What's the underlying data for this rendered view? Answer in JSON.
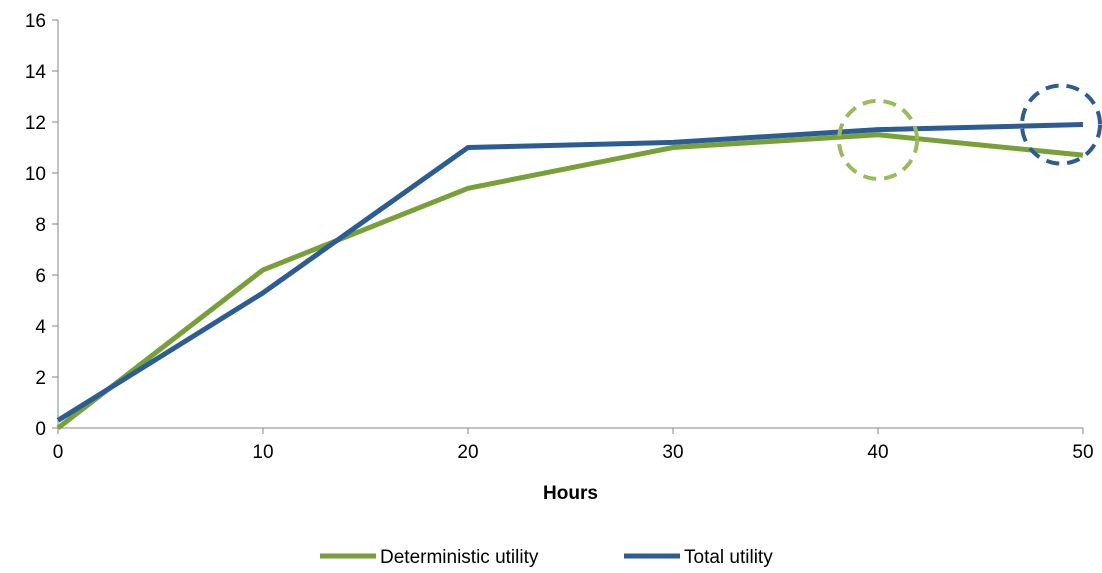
{
  "chart_data": {
    "type": "line",
    "title": "",
    "xlabel": "Hours",
    "ylabel": "",
    "x": [
      0,
      10,
      20,
      30,
      40,
      50
    ],
    "xticks": [
      "0",
      "10",
      "20",
      "30",
      "40",
      "50"
    ],
    "yticks": [
      "0",
      "2",
      "4",
      "6",
      "8",
      "10",
      "12",
      "14",
      "16"
    ],
    "xlim": [
      0,
      50
    ],
    "ylim": [
      0,
      16
    ],
    "grid": false,
    "legend_position": "bottom",
    "series": [
      {
        "name": "Deterministic utility",
        "color": "#77a136",
        "values": [
          0.0,
          6.2,
          9.4,
          11.0,
          11.5,
          10.7
        ],
        "highlight": {
          "x": 40,
          "y": 11.3,
          "color": "#9bbb59",
          "style": "dashed-circle"
        }
      },
      {
        "name": "Total utility",
        "color": "#2b5c94",
        "values": [
          0.3,
          5.3,
          11.0,
          11.2,
          11.7,
          11.9
        ],
        "highlight": {
          "x": 50,
          "y": 11.9,
          "color": "#2b5c94",
          "style": "dashed-circle"
        }
      }
    ]
  }
}
